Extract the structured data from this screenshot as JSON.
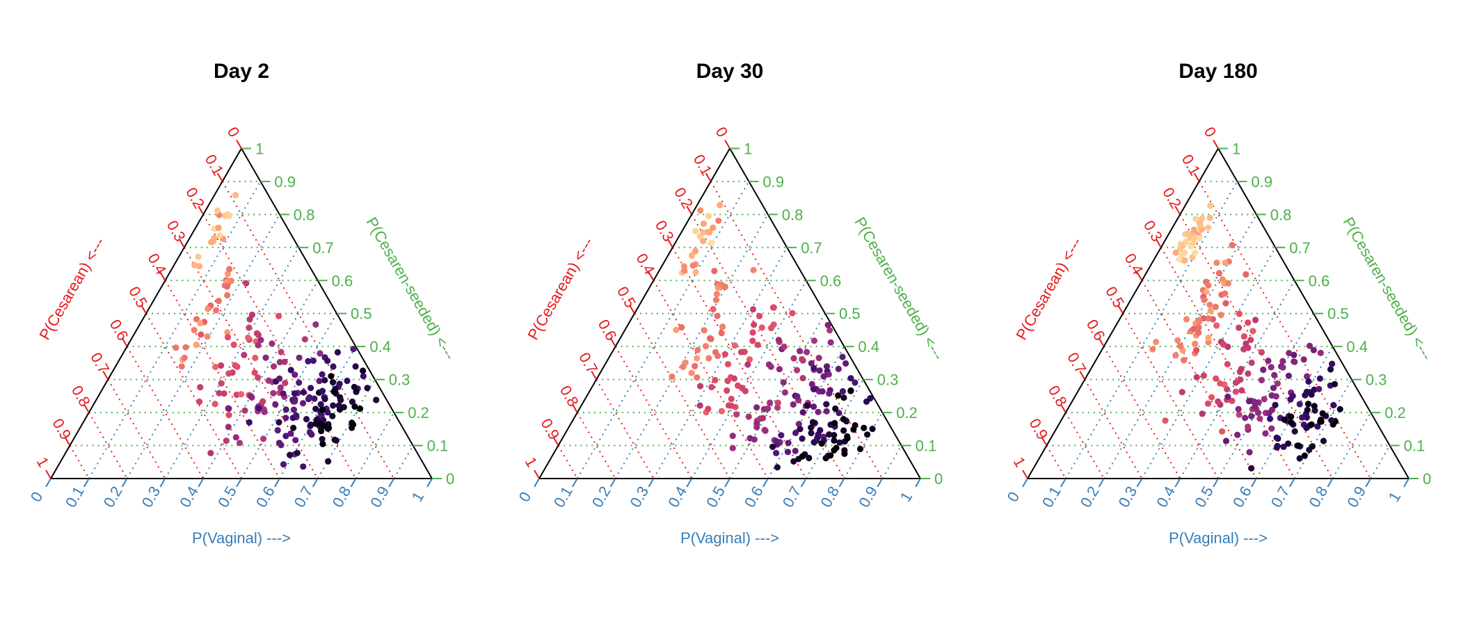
{
  "figure": {
    "colors": {
      "cesarean_axis": "#e41a1c",
      "vaginal_axis": "#377eb8",
      "seeded_axis": "#4daf4a",
      "triangle": "#000000",
      "palette": [
        "#000004",
        "#3b0f70",
        "#8c2981",
        "#de4968",
        "#fe9f6d",
        "#fcfdbf"
      ]
    }
  },
  "chart_data": [
    {
      "type": "scatter",
      "subtype": "ternary",
      "title": "Day 2",
      "axes": {
        "vaginal": {
          "label": "P(Vaginal) --->",
          "ticks": [
            "0",
            "0.1",
            "0.2",
            "0.3",
            "0.4",
            "0.5",
            "0.6",
            "0.7",
            "0.8",
            "0.9",
            "1"
          ]
        },
        "cesarean": {
          "label": "P(Cesarean) <---",
          "ticks": [
            "0",
            "0.1",
            "0.2",
            "0.3",
            "0.4",
            "0.5",
            "0.6",
            "0.7",
            "0.8",
            "0.9",
            "1"
          ]
        },
        "cesarean_seeded": {
          "label": "P(Cesaren-seeded) <---",
          "ticks": [
            "0",
            "0.1",
            "0.2",
            "0.3",
            "0.4",
            "0.5",
            "0.6",
            "0.7",
            "0.8",
            "0.9",
            "1"
          ]
        }
      },
      "grid": true,
      "clusters": [
        {
          "c": 0.85,
          "n": 16,
          "vaginal": [
            0.06,
            0.07
          ],
          "seeded": [
            0.82,
            0.66
          ],
          "spread": [
            0.012,
            0.025
          ]
        },
        {
          "c": 0.7,
          "n": 28,
          "vaginal": [
            0.16,
            0.17
          ],
          "seeded": [
            0.66,
            0.38
          ],
          "spread": [
            0.025,
            0.035
          ]
        },
        {
          "c": 0.58,
          "n": 30,
          "vaginal": [
            0.3,
            0.32
          ],
          "seeded": [
            0.5,
            0.22
          ],
          "spread": [
            0.03,
            0.03
          ]
        },
        {
          "c": 0.45,
          "n": 38,
          "vaginal": [
            0.42,
            0.45
          ],
          "seeded": [
            0.45,
            0.12
          ],
          "spread": [
            0.04,
            0.035
          ]
        },
        {
          "c": 0.25,
          "n": 55,
          "vaginal": [
            0.55,
            0.55
          ],
          "seeded": [
            0.38,
            0.1
          ],
          "spread": [
            0.05,
            0.04
          ]
        },
        {
          "c": 0.12,
          "n": 36,
          "vaginal": [
            0.62,
            0.62
          ],
          "seeded": [
            0.3,
            0.1
          ],
          "spread": [
            0.04,
            0.04
          ]
        },
        {
          "c": 0.03,
          "n": 22,
          "vaginal": [
            0.66,
            0.64
          ],
          "seeded": [
            0.25,
            0.12
          ],
          "spread": [
            0.035,
            0.035
          ]
        }
      ]
    },
    {
      "type": "scatter",
      "subtype": "ternary",
      "title": "Day 30",
      "axes": {
        "vaginal": {
          "label": "P(Vaginal) --->",
          "ticks": [
            "0",
            "0.1",
            "0.2",
            "0.3",
            "0.4",
            "0.5",
            "0.6",
            "0.7",
            "0.8",
            "0.9",
            "1"
          ]
        },
        "cesarean": {
          "label": "P(Cesarean) <---",
          "ticks": [
            "0",
            "0.1",
            "0.2",
            "0.3",
            "0.4",
            "0.5",
            "0.6",
            "0.7",
            "0.8",
            "0.9",
            "1"
          ]
        },
        "cesarean_seeded": {
          "label": "P(Cesaren-seeded) <---",
          "ticks": [
            "0",
            "0.1",
            "0.2",
            "0.3",
            "0.4",
            "0.5",
            "0.6",
            "0.7",
            "0.8",
            "0.9",
            "1"
          ]
        }
      },
      "grid": true,
      "clusters": [
        {
          "c": 0.85,
          "n": 22,
          "vaginal": [
            0.06,
            0.08
          ],
          "seeded": [
            0.82,
            0.62
          ],
          "spread": [
            0.015,
            0.025
          ]
        },
        {
          "c": 0.72,
          "n": 30,
          "vaginal": [
            0.2,
            0.22
          ],
          "seeded": [
            0.62,
            0.35
          ],
          "spread": [
            0.03,
            0.035
          ]
        },
        {
          "c": 0.6,
          "n": 38,
          "vaginal": [
            0.35,
            0.38
          ],
          "seeded": [
            0.5,
            0.18
          ],
          "spread": [
            0.035,
            0.035
          ]
        },
        {
          "c": 0.45,
          "n": 45,
          "vaginal": [
            0.5,
            0.5
          ],
          "seeded": [
            0.42,
            0.1
          ],
          "spread": [
            0.04,
            0.04
          ]
        },
        {
          "c": 0.3,
          "n": 40,
          "vaginal": [
            0.62,
            0.6
          ],
          "seeded": [
            0.35,
            0.08
          ],
          "spread": [
            0.04,
            0.04
          ]
        },
        {
          "c": 0.12,
          "n": 30,
          "vaginal": [
            0.7,
            0.68
          ],
          "seeded": [
            0.28,
            0.06
          ],
          "spread": [
            0.04,
            0.04
          ]
        },
        {
          "c": 0.02,
          "n": 24,
          "vaginal": [
            0.72,
            0.72
          ],
          "seeded": [
            0.22,
            0.05
          ],
          "spread": [
            0.04,
            0.03
          ]
        }
      ]
    },
    {
      "type": "scatter",
      "subtype": "ternary",
      "title": "Day 180",
      "axes": {
        "vaginal": {
          "label": "P(Vaginal) --->",
          "ticks": [
            "0",
            "0.1",
            "0.2",
            "0.3",
            "0.4",
            "0.5",
            "0.6",
            "0.7",
            "0.8",
            "0.9",
            "1"
          ]
        },
        "cesarean": {
          "label": "P(Cesarean) <---",
          "ticks": [
            "0",
            "0.1",
            "0.2",
            "0.3",
            "0.4",
            "0.5",
            "0.6",
            "0.7",
            "0.8",
            "0.9",
            "1"
          ]
        },
        "cesarean_seeded": {
          "label": "P(Cesaren-seeded) <---",
          "ticks": [
            "0",
            "0.1",
            "0.2",
            "0.3",
            "0.4",
            "0.5",
            "0.6",
            "0.7",
            "0.8",
            "0.9",
            "1"
          ]
        }
      },
      "grid": true,
      "clusters": [
        {
          "c": 0.88,
          "n": 34,
          "vaginal": [
            0.06,
            0.08
          ],
          "seeded": [
            0.8,
            0.66
          ],
          "spread": [
            0.015,
            0.025
          ]
        },
        {
          "c": 0.72,
          "n": 48,
          "vaginal": [
            0.2,
            0.22
          ],
          "seeded": [
            0.66,
            0.38
          ],
          "spread": [
            0.03,
            0.035
          ]
        },
        {
          "c": 0.55,
          "n": 40,
          "vaginal": [
            0.35,
            0.4
          ],
          "seeded": [
            0.5,
            0.2
          ],
          "spread": [
            0.04,
            0.035
          ]
        },
        {
          "c": 0.38,
          "n": 48,
          "vaginal": [
            0.5,
            0.5
          ],
          "seeded": [
            0.4,
            0.12
          ],
          "spread": [
            0.045,
            0.04
          ]
        },
        {
          "c": 0.18,
          "n": 36,
          "vaginal": [
            0.6,
            0.62
          ],
          "seeded": [
            0.3,
            0.1
          ],
          "spread": [
            0.04,
            0.04
          ]
        },
        {
          "c": 0.03,
          "n": 26,
          "vaginal": [
            0.66,
            0.68
          ],
          "seeded": [
            0.22,
            0.08
          ],
          "spread": [
            0.035,
            0.03
          ]
        }
      ]
    }
  ]
}
